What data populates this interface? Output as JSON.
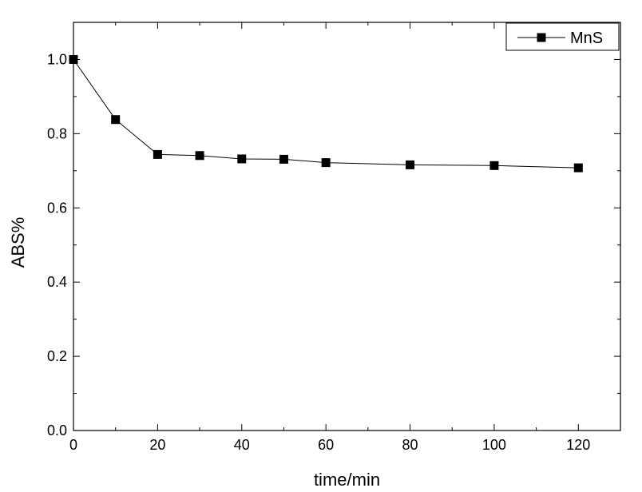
{
  "chart_data": {
    "type": "line",
    "title": "",
    "xlabel": "time/min",
    "ylabel": "ABS%",
    "xlim": [
      0,
      130
    ],
    "ylim": [
      0,
      1.1
    ],
    "x_ticks": [
      0,
      20,
      40,
      60,
      80,
      100,
      120
    ],
    "y_ticks": [
      0.0,
      0.2,
      0.4,
      0.6,
      0.8,
      1.0
    ],
    "x_tick_labels": [
      "0",
      "20",
      "40",
      "60",
      "80",
      "100",
      "120"
    ],
    "y_tick_labels": [
      "0.0",
      "0.2",
      "0.4",
      "0.6",
      "0.8",
      "1.0"
    ],
    "grid": false,
    "legend_position": "top-right",
    "series": [
      {
        "name": "MnS",
        "marker": "square",
        "color": "#000000",
        "x": [
          0,
          10,
          20,
          30,
          40,
          50,
          60,
          80,
          100,
          120
        ],
        "y": [
          1.0,
          0.838,
          0.744,
          0.741,
          0.732,
          0.731,
          0.722,
          0.716,
          0.714,
          0.708
        ]
      }
    ]
  }
}
